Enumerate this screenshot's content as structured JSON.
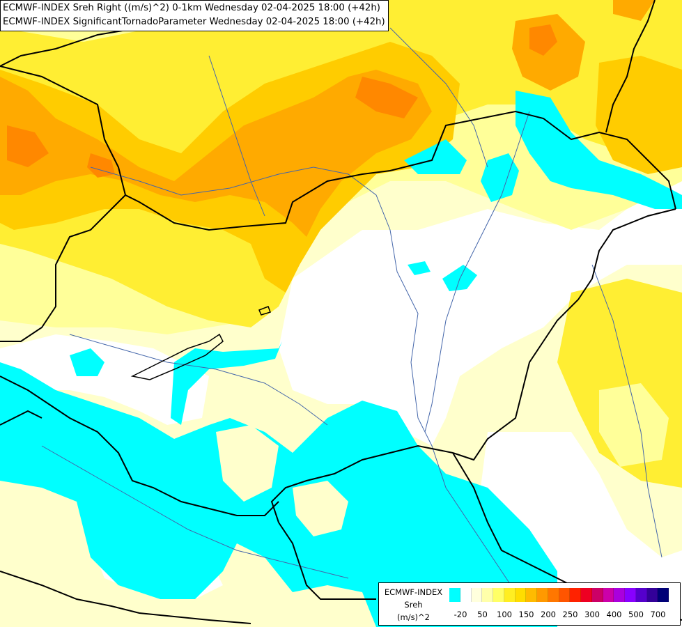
{
  "title": {
    "line1": "ECMWF-INDEX Sreh Right ((m/s)^2) 0-1km Wednesday 02-04-2025 18:00 (+42h)",
    "line2": "ECMWF-INDEX SignificantTornadoParameter Wednesday 02-04-2025 18:00 (+42h)"
  },
  "legend": {
    "model": "ECMWF-INDEX",
    "parameter": "Sreh",
    "unit": "(m/s)^2",
    "colors": [
      "#00ffff",
      "#ffffff",
      "#ffffdd",
      "#ffffaa",
      "#ffff66",
      "#ffee22",
      "#ffdd00",
      "#ffbb00",
      "#ff9900",
      "#ff7700",
      "#ff5500",
      "#ff2200",
      "#ee0022",
      "#cc0066",
      "#cc00aa",
      "#aa00dd",
      "#8800ff",
      "#5500cc",
      "#330099",
      "#000077"
    ],
    "ticks": [
      "-20",
      "50",
      "100",
      "150",
      "200",
      "250",
      "300",
      "400",
      "500",
      "700"
    ]
  },
  "field_colors": {
    "cyan": "#00ffff",
    "white": "#ffffff",
    "cream": "#ffffcc",
    "pale_yellow": "#ffff99",
    "yellow": "#ffee33",
    "gold": "#ffcc00",
    "orange": "#ffaa00",
    "dark_orange": "#ff8800"
  }
}
